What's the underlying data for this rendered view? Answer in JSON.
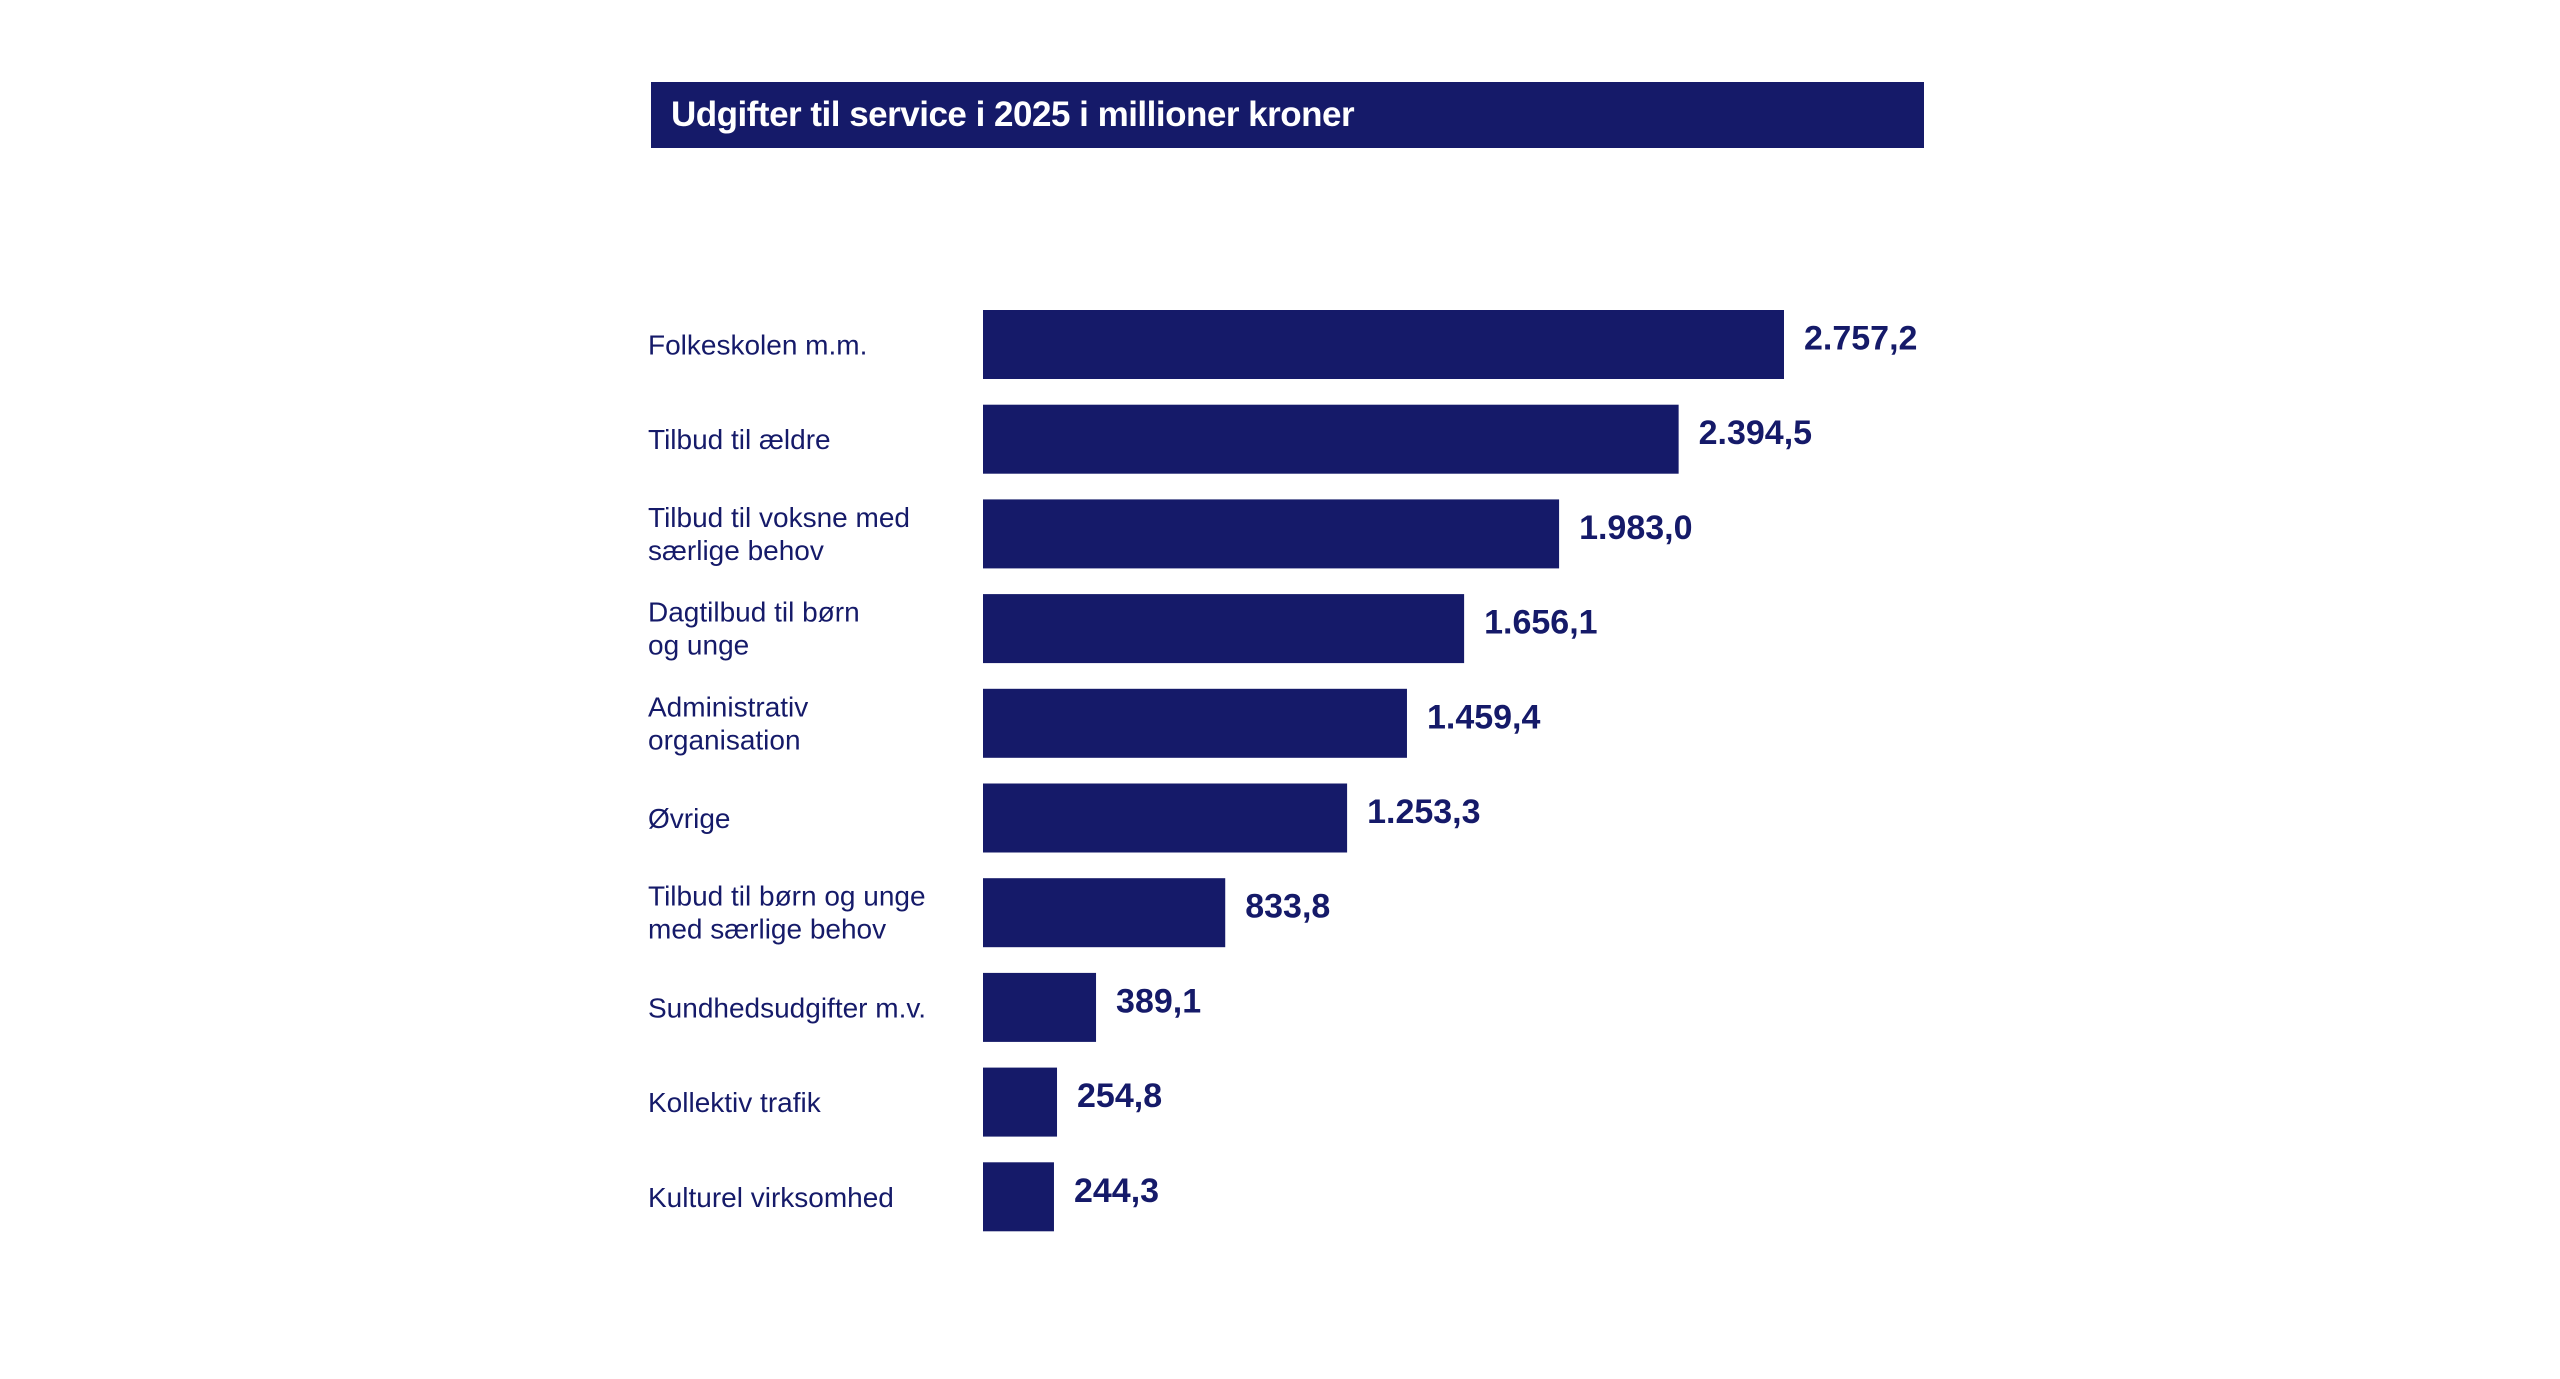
{
  "chart_data": {
    "type": "bar",
    "orientation": "horizontal",
    "title": "Udgifter til service i 2025 i millioner kroner",
    "categories": [
      [
        "Folkeskolen m.m."
      ],
      [
        "Tilbud til ældre"
      ],
      [
        "Tilbud til voksne med",
        "særlige behov"
      ],
      [
        "Dagtilbud til børn",
        "og unge"
      ],
      [
        "Administrativ",
        "organisation"
      ],
      [
        "Øvrige"
      ],
      [
        "Tilbud til børn og unge",
        "med særlige behov"
      ],
      [
        "Sundhedsudgifter m.v."
      ],
      [
        "Kollektiv trafik"
      ],
      [
        "Kulturel virksomhed"
      ]
    ],
    "values": [
      2757.2,
      2394.5,
      1983.0,
      1656.1,
      1459.4,
      1253.3,
      833.8,
      389.1,
      254.8,
      244.3
    ],
    "value_labels": [
      "2.757,2",
      "2.394,5",
      "1.983,0",
      "1.656,1",
      "1.459,4",
      "1.253,3",
      "833,8",
      "389,1",
      "254,8",
      "244,3"
    ],
    "xlim": [
      0,
      2757.2
    ],
    "grid": false,
    "bar_color": "#151a69",
    "title_bg_color": "#151a69"
  }
}
